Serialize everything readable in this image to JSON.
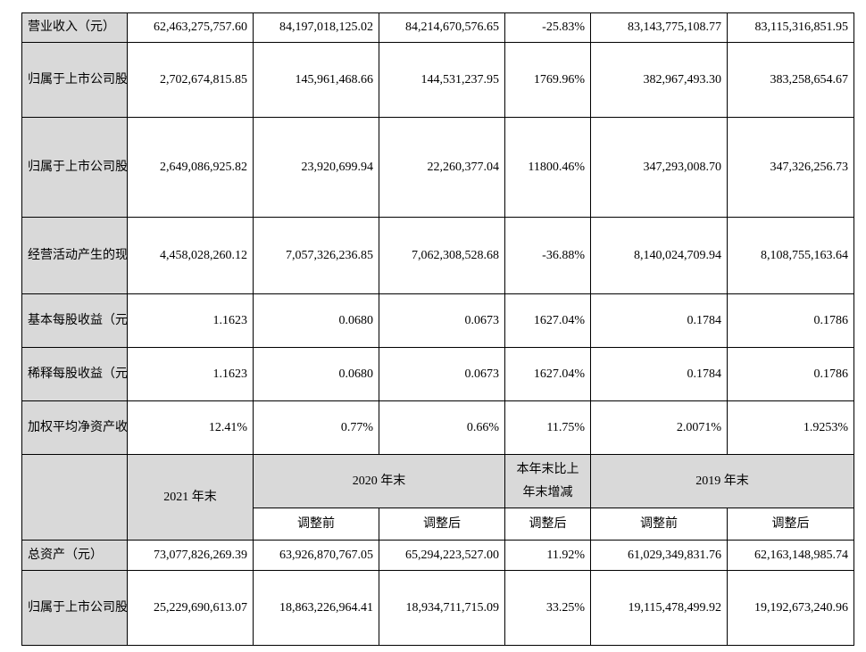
{
  "rows_top": [
    {
      "label": "营业收入（元）",
      "values": [
        "62,463,275,757.60",
        "84,197,018,125.02",
        "84,214,670,576.65",
        "-25.83%",
        "83,143,775,108.77",
        "83,115,316,851.95"
      ]
    },
    {
      "label": "归属于上市公司股东的净利润（元）",
      "values": [
        "2,702,674,815.85",
        "145,961,468.66",
        "144,531,237.95",
        "1769.96%",
        "382,967,493.30",
        "383,258,654.67"
      ]
    },
    {
      "label": "归属于上市公司股东的扣除非经常性损益的净利润（元）",
      "values": [
        "2,649,086,925.82",
        "23,920,699.94",
        "22,260,377.04",
        "11800.46%",
        "347,293,008.70",
        "347,326,256.73"
      ]
    },
    {
      "label": "经营活动产生的现金流量净额（元）",
      "values": [
        "4,458,028,260.12",
        "7,057,326,236.85",
        "7,062,308,528.68",
        "-36.88%",
        "8,140,024,709.94",
        "8,108,755,163.64"
      ]
    },
    {
      "label": "基本每股收益（元/股）",
      "values": [
        "1.1623",
        "0.0680",
        "0.0673",
        "1627.04%",
        "0.1784",
        "0.1786"
      ]
    },
    {
      "label": "稀释每股收益（元/股）",
      "values": [
        "1.1623",
        "0.0680",
        "0.0673",
        "1627.04%",
        "0.1784",
        "0.1786"
      ]
    },
    {
      "label": "加权平均净资产收益率",
      "values": [
        "12.41%",
        "0.77%",
        "0.66%",
        "11.75%",
        "2.0071%",
        "1.9253%"
      ]
    }
  ],
  "header": {
    "col_2021": "2021 年末",
    "col_2020": "2020 年末",
    "col_change": "本年末比上年末增减",
    "col_2019": "2019 年末",
    "before_adjust": "调整前",
    "after_adjust": "调整后",
    "change_after": "调整后",
    "before_adjust_2019": "调整前",
    "after_adjust_2019": "调整后"
  },
  "rows_bottom": [
    {
      "label": "总资产（元）",
      "values": [
        "73,077,826,269.39",
        "63,926,870,767.05",
        "65,294,223,527.00",
        "11.92%",
        "61,029,349,831.76",
        "62,163,148,985.74"
      ]
    },
    {
      "label": "归属于上市公司股东的净资产（元）",
      "values": [
        "25,229,690,613.07",
        "18,863,226,964.41",
        "18,934,711,715.09",
        "33.25%",
        "19,115,478,499.92",
        "19,192,673,240.96"
      ]
    }
  ]
}
